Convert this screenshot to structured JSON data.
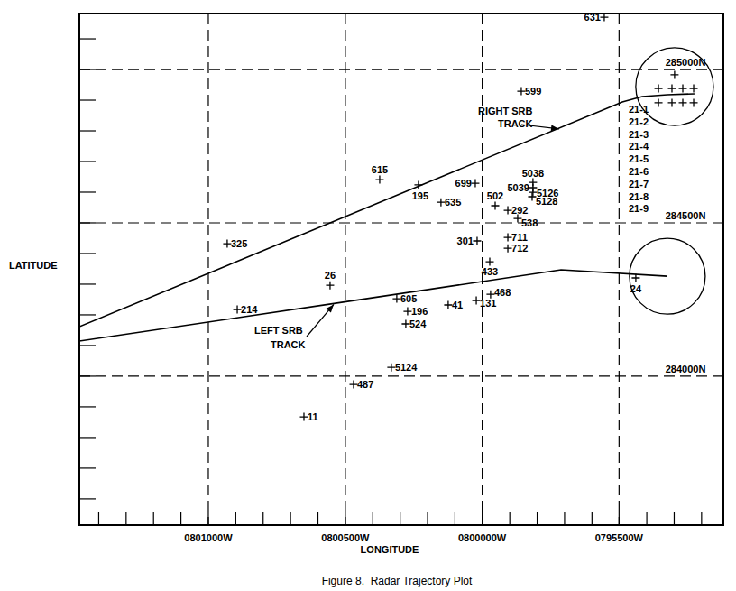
{
  "chart_data": {
    "type": "scatter",
    "title": "Figure 8.  Radar Trajectory Plot",
    "x_label": "LONGITUDE",
    "y_label": "LATITUDE",
    "xlim": [
      -80.2452,
      -79.8532
    ],
    "ylim": [
      28.5858,
      28.8637
    ],
    "xticks": [
      {
        "value": -80.1667,
        "label": "0801000W"
      },
      {
        "value": -80.0833,
        "label": "0800500W"
      },
      {
        "value": -80.0,
        "label": "0800000W"
      },
      {
        "value": -79.9167,
        "label": "0795500W"
      }
    ],
    "yticks": [
      {
        "value": 28.6667,
        "label": "284000N"
      },
      {
        "value": 28.75,
        "label": "284500N"
      },
      {
        "value": 28.8333,
        "label": "285000N"
      }
    ],
    "grid": true,
    "tick_labels": true,
    "series": [
      {
        "type": "scatter",
        "marker": "plus",
        "color": "#000000",
        "labels": [
          "631",
          "599",
          "615",
          "195",
          "699",
          "5038",
          "5039",
          "5126",
          "5128",
          "635",
          "502",
          "292",
          "538",
          "325",
          "301",
          "711",
          "712",
          "433",
          "26",
          "24",
          "605",
          "468",
          "131",
          "41",
          "196",
          "524",
          "214",
          "5124",
          "487",
          "11"
        ],
        "x": [
          -79.9257,
          -79.9762,
          -80.0624,
          -80.0388,
          -80.0042,
          -79.9691,
          -79.9691,
          -79.9691,
          -79.9696,
          -80.0251,
          -79.9921,
          -79.9844,
          -79.9784,
          -80.1552,
          -80.0031,
          -79.9844,
          -79.9844,
          -79.9954,
          -80.0926,
          -79.9065,
          -80.052,
          -79.9949,
          -80.0036,
          -80.0207,
          -80.0454,
          -80.0465,
          -80.1491,
          -80.0553,
          -80.0783,
          -80.1085
        ],
        "y": [
          28.8617,
          28.8215,
          28.7735,
          28.7706,
          28.7715,
          28.772,
          28.7691,
          28.7666,
          28.7642,
          28.7612,
          28.7593,
          28.7568,
          28.7524,
          28.7387,
          28.7402,
          28.7421,
          28.7362,
          28.7289,
          28.7161,
          28.7201,
          28.7088,
          28.7112,
          28.7078,
          28.7054,
          28.7019,
          28.6951,
          28.7029,
          28.6715,
          28.6622,
          28.6446
        ]
      },
      {
        "type": "scatter",
        "marker": "plus",
        "color": "#000000",
        "labels": [
          "21-1",
          "21-2",
          "21-3",
          "21-4",
          "21-5",
          "21-6",
          "21-7",
          "21-8",
          "21-9"
        ],
        "x": [
          -79.8829,
          -79.8927,
          -79.8845,
          -79.8779,
          -79.8713,
          -79.8927,
          -79.8845,
          -79.8779,
          -79.8713
        ],
        "y": [
          28.8304,
          28.823,
          28.823,
          28.823,
          28.823,
          28.8152,
          28.8152,
          28.8152,
          28.8152
        ]
      },
      {
        "type": "line",
        "line_style": "solid",
        "color": "#000000",
        "label": [
          "RIGHT SRB",
          "TRACK"
        ],
        "x": [
          -80.2452,
          -79.9147,
          -79.9026,
          -79.8873,
          -79.8708
        ],
        "y": [
          28.6936,
          28.8157,
          28.8186,
          28.8196,
          28.8201
        ]
      },
      {
        "type": "line",
        "line_style": "solid",
        "color": "#000000",
        "label": [
          "LEFT SRB",
          "TRACK"
        ],
        "x": [
          -80.2452,
          -80.0893,
          -79.952,
          -79.8873
        ],
        "y": [
          28.6858,
          28.7063,
          28.7245,
          28.721
        ]
      }
    ],
    "regions": [
      {
        "x": -79.8829,
        "y": 28.824,
        "radius": 0.0211
      },
      {
        "x": -79.8873,
        "y": 28.721,
        "radius": 0.0206
      }
    ]
  }
}
